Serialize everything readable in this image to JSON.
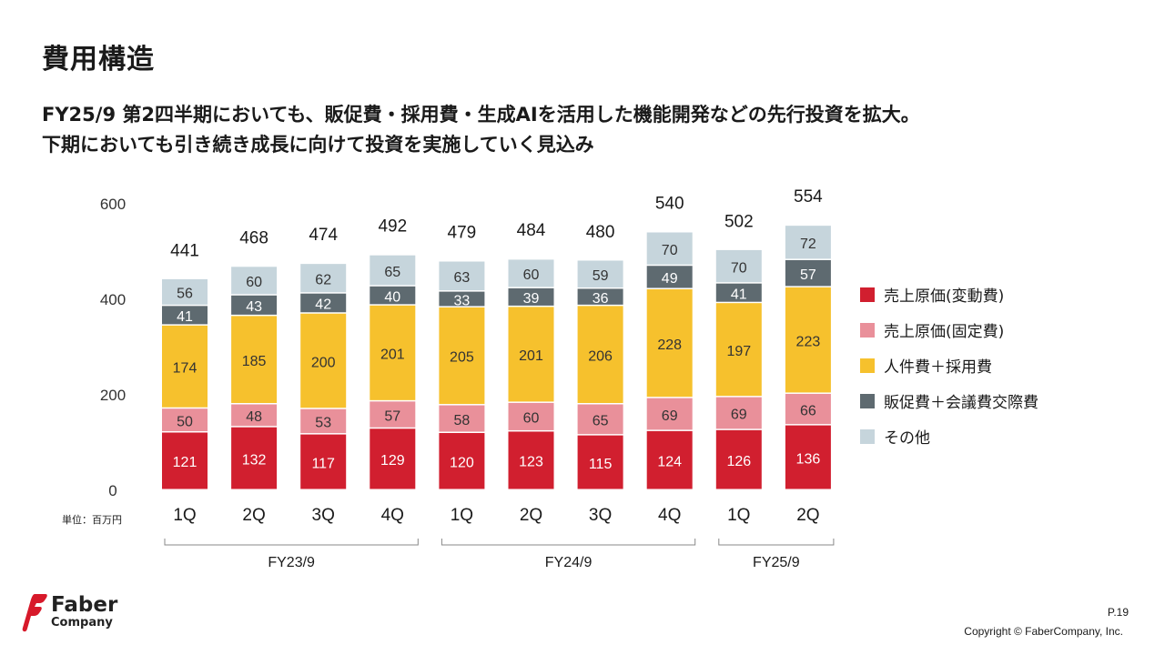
{
  "page": {
    "title": "費用構造",
    "subtitle_lines": [
      "FY25/9 第2四半期においても、販促費・採用費・生成AIを活用した機能開発などの先行投資を拡大。",
      "下期においても引き続き成長に向けて投資を実施していく見込み"
    ],
    "unit": "単位：百万円",
    "page_number": "P.19",
    "copyright": "Copyright © FaberCompany, Inc.",
    "logo": {
      "line1": "Faber",
      "line2": "Company",
      "color": "#d7192a"
    }
  },
  "chart_data": {
    "type": "bar",
    "stacked": true,
    "categories": [
      "1Q",
      "2Q",
      "3Q",
      "4Q",
      "1Q",
      "2Q",
      "3Q",
      "4Q",
      "1Q",
      "2Q"
    ],
    "groups": [
      {
        "label": "FY23/9",
        "from": 0,
        "to": 3
      },
      {
        "label": "FY24/9",
        "from": 4,
        "to": 7
      },
      {
        "label": "FY25/9",
        "from": 8,
        "to": 9
      }
    ],
    "ylim": [
      0,
      600
    ],
    "yticks": [
      0,
      200,
      400,
      600
    ],
    "series": [
      {
        "name": "売上原価(変動費)",
        "color": "#d11f2f",
        "label_color": "#ffffff",
        "values": [
          121,
          132,
          117,
          129,
          120,
          123,
          115,
          124,
          126,
          136
        ]
      },
      {
        "name": "売上原価(固定費)",
        "color": "#e9909a",
        "label_color": "#333333",
        "values": [
          50,
          48,
          53,
          57,
          58,
          60,
          65,
          69,
          69,
          66
        ]
      },
      {
        "name": "人件費＋採用費",
        "color": "#f6c12d",
        "label_color": "#333333",
        "values": [
          174,
          185,
          200,
          201,
          205,
          201,
          206,
          228,
          197,
          223
        ]
      },
      {
        "name": "販促費＋会議費交際費",
        "color": "#5e6a70",
        "label_color": "#ffffff",
        "values": [
          41,
          43,
          42,
          40,
          33,
          39,
          36,
          49,
          41,
          57
        ]
      },
      {
        "name": "その他",
        "color": "#c6d5dc",
        "label_color": "#333333",
        "values": [
          56,
          60,
          62,
          65,
          63,
          60,
          59,
          70,
          70,
          72
        ]
      }
    ],
    "totals": [
      441,
      468,
      474,
      492,
      479,
      484,
      480,
      540,
      502,
      554
    ]
  }
}
